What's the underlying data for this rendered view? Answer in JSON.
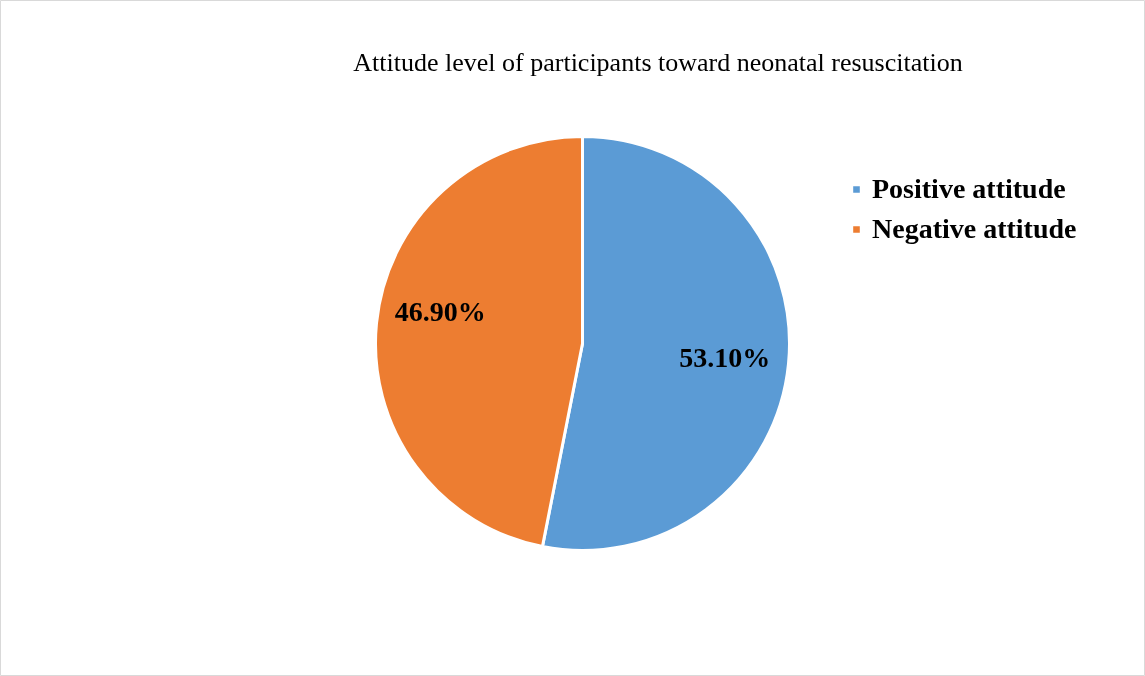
{
  "chart_data": {
    "type": "pie",
    "title": "Attitude level of participants toward neonatal resuscitation",
    "categories": [
      "Positive attitude",
      "Negative attitude"
    ],
    "values": [
      53.1,
      46.9
    ],
    "colors": [
      "#5b9bd5",
      "#ed7d31"
    ],
    "value_labels": [
      "53.10%",
      "46.90%"
    ],
    "legend": "right"
  }
}
